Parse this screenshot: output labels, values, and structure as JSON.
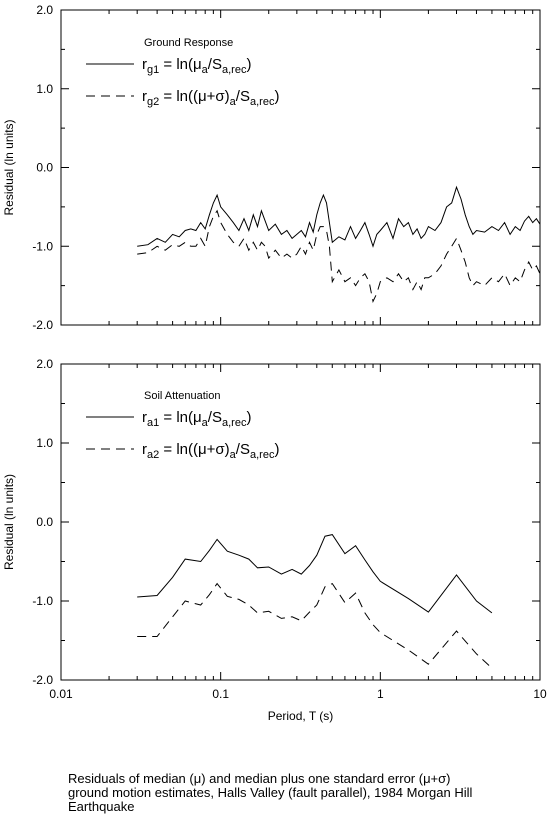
{
  "chart_data": [
    {
      "type": "line",
      "id": "top",
      "legend_title": "Ground Response",
      "legend_placement": "top-left",
      "xlabel": "",
      "ylabel": "Residual (ln units)",
      "xscale": "log",
      "xlim": [
        0.01,
        10
      ],
      "ylim": [
        -2.0,
        2.0
      ],
      "yticks": [
        "2.0",
        "1.0",
        "0.0",
        "-1.0",
        "-2.0"
      ],
      "yticks_values": [
        2,
        1,
        0,
        -1,
        -2
      ],
      "grid": false,
      "series": [
        {
          "name": "r",
          "sub": "g1",
          "eq_lhs": " = ln(",
          "mu": "μ",
          "sub2": "a",
          "slash": "/S",
          "sub3": "a,rec",
          "close": ")",
          "style": "solid",
          "x": [
            0.03,
            0.035,
            0.04,
            0.045,
            0.05,
            0.055,
            0.06,
            0.065,
            0.07,
            0.075,
            0.08,
            0.085,
            0.09,
            0.095,
            0.1,
            0.11,
            0.12,
            0.13,
            0.14,
            0.15,
            0.16,
            0.17,
            0.18,
            0.19,
            0.2,
            0.22,
            0.24,
            0.26,
            0.28,
            0.3,
            0.32,
            0.34,
            0.36,
            0.38,
            0.4,
            0.42,
            0.44,
            0.46,
            0.48,
            0.5,
            0.55,
            0.6,
            0.65,
            0.7,
            0.75,
            0.8,
            0.85,
            0.9,
            0.95,
            1.0,
            1.1,
            1.2,
            1.3,
            1.4,
            1.5,
            1.6,
            1.7,
            1.8,
            1.9,
            2.0,
            2.2,
            2.4,
            2.6,
            2.8,
            3.0,
            3.2,
            3.4,
            3.6,
            3.8,
            4.0,
            4.5,
            5.0,
            5.5,
            6.0,
            6.5,
            7.0,
            7.5,
            8.0,
            8.5,
            9.0,
            9.5,
            10.0
          ],
          "y": [
            -1.0,
            -0.98,
            -0.9,
            -0.95,
            -0.85,
            -0.88,
            -0.8,
            -0.78,
            -0.8,
            -0.7,
            -0.78,
            -0.6,
            -0.45,
            -0.35,
            -0.5,
            -0.6,
            -0.7,
            -0.8,
            -0.65,
            -0.8,
            -0.6,
            -0.75,
            -0.55,
            -0.68,
            -0.8,
            -0.72,
            -0.85,
            -0.8,
            -0.9,
            -0.85,
            -0.8,
            -0.88,
            -0.7,
            -0.82,
            -0.6,
            -0.45,
            -0.35,
            -0.45,
            -0.7,
            -0.95,
            -0.88,
            -0.92,
            -0.75,
            -0.9,
            -0.8,
            -0.7,
            -0.85,
            -1.0,
            -0.85,
            -0.8,
            -0.7,
            -0.9,
            -0.65,
            -0.75,
            -0.7,
            -0.85,
            -0.78,
            -0.9,
            -0.85,
            -0.75,
            -0.8,
            -0.7,
            -0.5,
            -0.45,
            -0.25,
            -0.4,
            -0.6,
            -0.75,
            -0.85,
            -0.8,
            -0.82,
            -0.75,
            -0.8,
            -0.7,
            -0.85,
            -0.75,
            -0.8,
            -0.68,
            -0.62,
            -0.7,
            -0.65,
            -0.72
          ]
        },
        {
          "name": "r",
          "sub": "g2",
          "eq_lhs": " = ln((",
          "mu": "μ+σ)",
          "sub2": "a",
          "slash": "/S",
          "sub3": "a,rec",
          "close": ")",
          "style": "dashed",
          "x": [
            0.03,
            0.035,
            0.04,
            0.045,
            0.05,
            0.055,
            0.06,
            0.065,
            0.07,
            0.075,
            0.08,
            0.085,
            0.09,
            0.095,
            0.1,
            0.11,
            0.12,
            0.13,
            0.14,
            0.15,
            0.16,
            0.17,
            0.18,
            0.19,
            0.2,
            0.22,
            0.24,
            0.26,
            0.28,
            0.3,
            0.32,
            0.34,
            0.36,
            0.38,
            0.4,
            0.42,
            0.44,
            0.46,
            0.48,
            0.5,
            0.55,
            0.6,
            0.65,
            0.7,
            0.75,
            0.8,
            0.85,
            0.9,
            0.95,
            1.0,
            1.1,
            1.2,
            1.3,
            1.4,
            1.5,
            1.6,
            1.7,
            1.8,
            1.9,
            2.0,
            2.2,
            2.4,
            2.6,
            2.8,
            3.0,
            3.2,
            3.4,
            3.6,
            3.8,
            4.0,
            4.5,
            5.0,
            5.5,
            6.0,
            6.5,
            7.0,
            7.5,
            8.0,
            8.5,
            9.0,
            9.5,
            10.0
          ],
          "y": [
            -1.1,
            -1.08,
            -1.0,
            -1.05,
            -0.98,
            -1.0,
            -0.95,
            -1.0,
            -1.0,
            -0.9,
            -1.0,
            -0.75,
            -0.62,
            -0.55,
            -0.7,
            -0.85,
            -0.95,
            -1.0,
            -0.9,
            -1.05,
            -0.95,
            -1.05,
            -0.95,
            -1.0,
            -1.15,
            -1.05,
            -1.15,
            -1.1,
            -1.15,
            -1.1,
            -1.0,
            -1.1,
            -0.95,
            -1.05,
            -0.85,
            -0.75,
            -0.75,
            -0.8,
            -1.0,
            -1.45,
            -1.3,
            -1.45,
            -1.4,
            -1.5,
            -1.4,
            -1.35,
            -1.45,
            -1.7,
            -1.6,
            -1.45,
            -1.4,
            -1.45,
            -1.35,
            -1.45,
            -1.4,
            -1.55,
            -1.45,
            -1.55,
            -1.4,
            -1.4,
            -1.35,
            -1.25,
            -1.1,
            -1.0,
            -0.9,
            -1.05,
            -1.2,
            -1.4,
            -1.5,
            -1.45,
            -1.5,
            -1.4,
            -1.45,
            -1.35,
            -1.5,
            -1.4,
            -1.45,
            -1.3,
            -1.2,
            -1.3,
            -1.25,
            -1.35
          ]
        }
      ]
    },
    {
      "type": "line",
      "id": "bottom",
      "legend_title": "Soil Attenuation",
      "legend_placement": "top-left",
      "xlabel": "Period, T (s)",
      "ylabel": "Residual (ln units)",
      "xscale": "log",
      "xlim": [
        0.01,
        10
      ],
      "ylim": [
        -2.0,
        2.0
      ],
      "xticks": [
        "0.01",
        "0.1",
        "1",
        "10"
      ],
      "xticks_values": [
        0.01,
        0.1,
        1,
        10
      ],
      "yticks": [
        "2.0",
        "1.0",
        "0.0",
        "-1.0",
        "-2.0"
      ],
      "yticks_values": [
        2,
        1,
        0,
        -1,
        -2
      ],
      "grid": false,
      "series": [
        {
          "name": "r",
          "sub": "a1",
          "eq_lhs": " = ln(",
          "mu": "μ",
          "sub2": "a",
          "slash": "/S",
          "sub3": "a,rec",
          "close": ")",
          "style": "solid",
          "x": [
            0.03,
            0.04,
            0.05,
            0.06,
            0.075,
            0.085,
            0.095,
            0.11,
            0.13,
            0.15,
            0.17,
            0.2,
            0.24,
            0.28,
            0.32,
            0.36,
            0.4,
            0.45,
            0.5,
            0.6,
            0.7,
            0.8,
            0.9,
            1.0,
            1.5,
            2.0,
            3.0,
            4.0,
            5.0
          ],
          "y": [
            -0.95,
            -0.93,
            -0.7,
            -0.47,
            -0.5,
            -0.36,
            -0.22,
            -0.37,
            -0.42,
            -0.47,
            -0.58,
            -0.57,
            -0.66,
            -0.6,
            -0.66,
            -0.55,
            -0.42,
            -0.18,
            -0.16,
            -0.4,
            -0.3,
            -0.48,
            -0.63,
            -0.75,
            -0.97,
            -1.14,
            -0.67,
            -1.0,
            -1.15
          ]
        },
        {
          "name": "r",
          "sub": "a2",
          "eq_lhs": " = ln((",
          "mu": "μ+σ)",
          "sub2": "a",
          "slash": "/S",
          "sub3": "a,rec",
          "close": ")",
          "style": "dashed",
          "x": [
            0.03,
            0.04,
            0.05,
            0.06,
            0.075,
            0.085,
            0.095,
            0.11,
            0.13,
            0.15,
            0.17,
            0.2,
            0.24,
            0.28,
            0.32,
            0.36,
            0.4,
            0.45,
            0.5,
            0.6,
            0.7,
            0.8,
            0.9,
            1.0,
            1.5,
            2.0,
            3.0,
            4.0,
            5.0
          ],
          "y": [
            -1.45,
            -1.45,
            -1.2,
            -1.0,
            -1.05,
            -0.92,
            -0.78,
            -0.94,
            -0.98,
            -1.05,
            -1.15,
            -1.13,
            -1.22,
            -1.2,
            -1.25,
            -1.14,
            -1.05,
            -0.82,
            -0.78,
            -1.02,
            -0.9,
            -1.15,
            -1.3,
            -1.4,
            -1.62,
            -1.8,
            -1.38,
            -1.67,
            -1.85
          ]
        }
      ]
    }
  ],
  "caption": {
    "line1": "Residuals of median (μ) and median plus one standard error (μ+σ)",
    "line2": "ground motion estimates, Halls Valley (fault parallel), 1984 Morgan Hill",
    "line3": "Earthquake"
  }
}
